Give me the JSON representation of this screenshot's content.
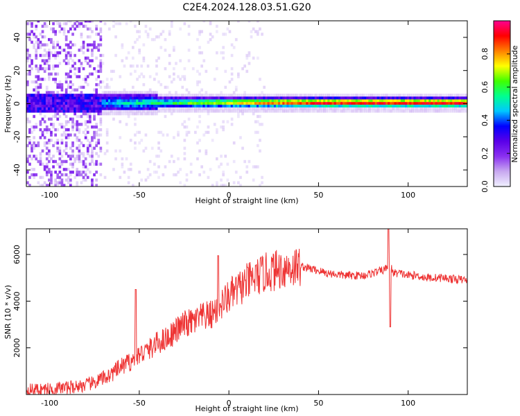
{
  "figure": {
    "title": "C2E4.2024.128.03.51.G20"
  },
  "chart_data": [
    {
      "type": "heatmap",
      "xlabel": "Height of straight line (km)",
      "ylabel": "Frequency (Hz)",
      "xlim": [
        -113,
        133
      ],
      "ylim": [
        -50,
        50
      ],
      "xticks": [
        -100,
        -50,
        0,
        50,
        100
      ],
      "yticks": [
        -40,
        -20,
        0,
        20,
        40
      ],
      "colorbar": {
        "label": "Normalized spectral amplitude",
        "range": [
          0,
          1
        ],
        "ticks": [
          0.0,
          0.2,
          0.4,
          0.6,
          0.8
        ],
        "colormap": [
          "#f0f0ff",
          "#c8a8f0",
          "#8a30f0",
          "#5a00e8",
          "#0000ff",
          "#00c8ff",
          "#00ff90",
          "#40ff00",
          "#ffff00",
          "#ff8000",
          "#ff0000",
          "#ff0090"
        ]
      },
      "band_center_hz": 0,
      "colors": {
        "background": "#ffffff"
      }
    },
    {
      "type": "line",
      "xlabel": "Height of straight line (km)",
      "ylabel": "SNR (10 * v/v)",
      "xlim": [
        -113,
        133
      ],
      "ylim": [
        0,
        7100
      ],
      "xticks": [
        -100,
        -50,
        0,
        50,
        100
      ],
      "yticks": [
        2000,
        4000,
        6000
      ],
      "series": [
        {
          "color": "#ee3333",
          "x": [
            -113,
            -100,
            -90,
            -80,
            -75,
            -70,
            -65,
            -60,
            -55,
            -50,
            -45,
            -40,
            -35,
            -30,
            -25,
            -20,
            -15,
            -10,
            -5,
            0,
            5,
            10,
            15,
            20,
            25,
            30,
            35,
            40,
            45,
            50,
            55,
            60,
            65,
            70,
            75,
            80,
            85,
            88,
            90,
            92,
            95,
            100,
            105,
            110,
            115,
            120,
            125,
            133
          ],
          "values": [
            200,
            240,
            300,
            400,
            500,
            700,
            900,
            1200,
            1400,
            1700,
            1900,
            2200,
            2400,
            2700,
            3000,
            3100,
            3300,
            3400,
            3800,
            4200,
            4500,
            4800,
            5000,
            5200,
            5300,
            5400,
            5450,
            5500,
            5400,
            5300,
            5200,
            5150,
            5100,
            5100,
            5100,
            5200,
            5300,
            5400,
            5500,
            5200,
            5200,
            5100,
            5100,
            5000,
            5000,
            5000,
            4950,
            4900
          ],
          "spikes": [
            {
              "x": -52,
              "value": 4500
            },
            {
              "x": -6,
              "value": 5950
            },
            {
              "x": 89,
              "value": 7100
            },
            {
              "x": 90,
              "value": 2900
            }
          ]
        }
      ]
    }
  ]
}
